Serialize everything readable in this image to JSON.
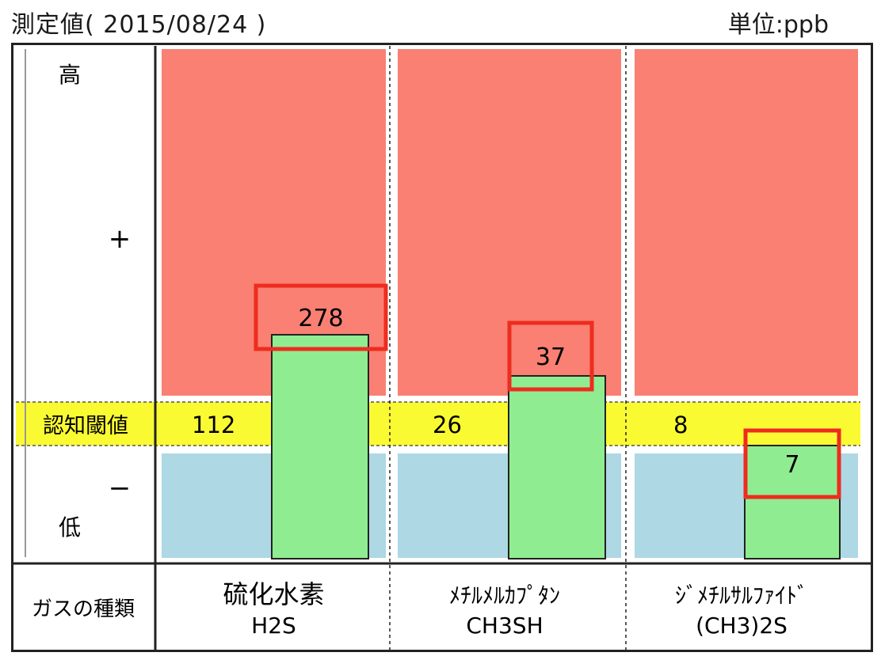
{
  "header": {
    "title": "測定値( 2015/08/24 )",
    "unit": "単位:ppb"
  },
  "scale_labels": {
    "high": "高",
    "plus": "+",
    "minus": "−",
    "low": "低"
  },
  "threshold_label": "認知閾値",
  "gas_type_label": "ガスの種類",
  "colors": {
    "above_zone": "#f98073",
    "below_zone": "#add8e4",
    "threshold_band": "#fafa33",
    "bar_fill": "#90ec90",
    "highlight_box": "#ee2c1f"
  },
  "chart_data": {
    "type": "bar",
    "title": "測定値( 2015/08/24 )",
    "unit": "ppb",
    "categories": [
      {
        "name": "硫化水素",
        "formula": "H2S"
      },
      {
        "name": "ﾒﾁﾙﾒﾙｶﾌﾟﾀﾝ",
        "formula": "CH3SH"
      },
      {
        "name": "ｼﾞﾒﾁﾙｻﾙﾌｧｲﾄﾞ",
        "formula": "(CH3)2S"
      }
    ],
    "values": [
      278,
      37,
      7
    ],
    "thresholds": [
      112,
      26,
      8
    ],
    "value_labels": [
      "278",
      "37",
      "7"
    ],
    "threshold_labels": [
      "112",
      "26",
      "8"
    ]
  }
}
